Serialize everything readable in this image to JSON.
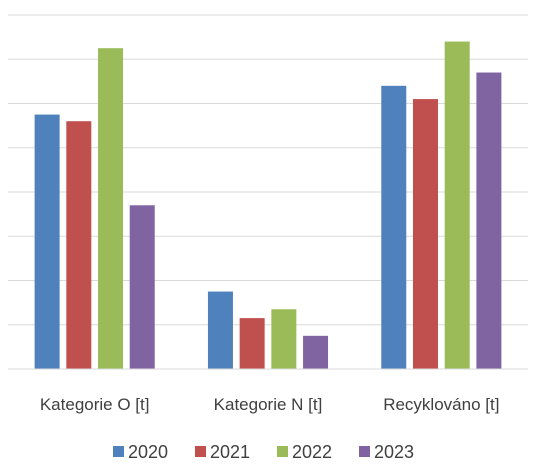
{
  "chart_data": {
    "type": "bar",
    "title": "",
    "xlabel": "",
    "ylabel": "",
    "categories": [
      "Kategorie O [t]",
      "Kategorie N [t]",
      "Recyklováno [t]"
    ],
    "series": [
      {
        "name": "2020",
        "color": "#4f81bd",
        "values": [
          57.5,
          17.5,
          64
        ]
      },
      {
        "name": "2021",
        "color": "#c0504d",
        "values": [
          56,
          11.5,
          61
        ]
      },
      {
        "name": "2022",
        "color": "#9bbb59",
        "values": [
          72.5,
          13.5,
          74
        ]
      },
      {
        "name": "2023",
        "color": "#8064a2",
        "values": [
          37,
          7.5,
          67
        ]
      }
    ],
    "ylim": [
      0,
      80
    ],
    "grid": true,
    "legend": "bottom"
  }
}
